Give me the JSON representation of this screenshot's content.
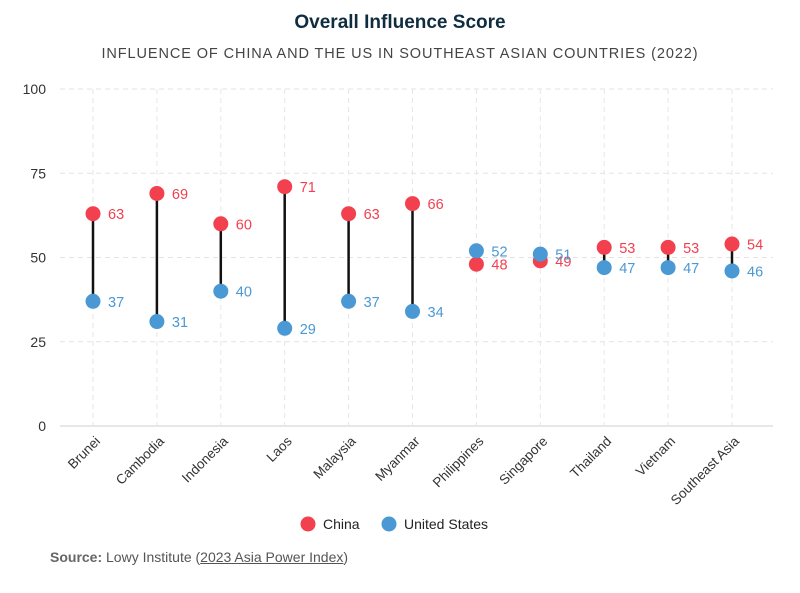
{
  "chart_data": {
    "type": "dumbbell",
    "title": "Overall Influence Score",
    "subtitle": "INFLUENCE OF CHINA AND THE US IN SOUTHEAST ASIAN COUNTRIES (2022)",
    "categories": [
      "Brunei",
      "Cambodia",
      "Indonesia",
      "Laos",
      "Malaysia",
      "Myanmar",
      "Philippines",
      "Singapore",
      "Thailand",
      "Vietnam",
      "Southeast Asia"
    ],
    "series": [
      {
        "name": "China",
        "color": "#f2404f",
        "values": [
          63,
          69,
          60,
          71,
          63,
          66,
          48,
          49,
          53,
          53,
          54
        ]
      },
      {
        "name": "United States",
        "color": "#4a98d4",
        "values": [
          37,
          31,
          40,
          29,
          37,
          34,
          52,
          51,
          47,
          47,
          46
        ]
      }
    ],
    "ylim": [
      0,
      100
    ],
    "yticks": [
      0,
      25,
      50,
      75,
      100
    ],
    "grid": true,
    "legend_position": "bottom-center"
  },
  "source": {
    "label": "Source:",
    "text": " Lowy Institute (",
    "link": "2023 Asia Power Index",
    "close": ")"
  }
}
